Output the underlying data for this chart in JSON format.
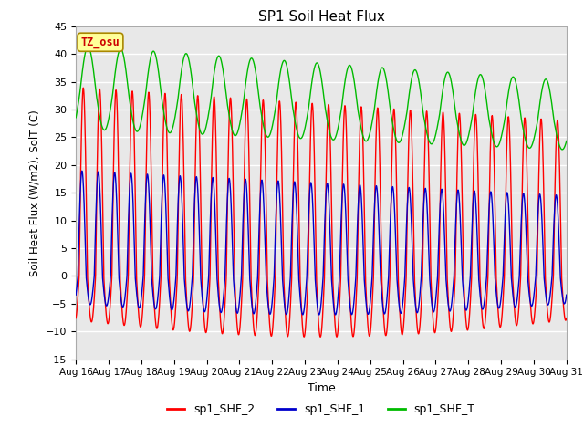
{
  "title": "SP1 Soil Heat Flux",
  "xlabel": "Time",
  "ylabel": "Soil Heat Flux (W/m2), SolT (C)",
  "yticks": [
    -15,
    -10,
    -5,
    0,
    5,
    10,
    15,
    20,
    25,
    30,
    35,
    40,
    45
  ],
  "ylim": [
    -15,
    45
  ],
  "xtick_labels": [
    "Aug 16",
    "Aug 17",
    "Aug 18",
    "Aug 19",
    "Aug 20",
    "Aug 21",
    "Aug 22",
    "Aug 23",
    "Aug 24",
    "Aug 25",
    "Aug 26",
    "Aug 27",
    "Aug 28",
    "Aug 29",
    "Aug 30",
    "Aug 31"
  ],
  "color_shf2": "#ff0000",
  "color_shf1": "#0000cc",
  "color_shft": "#00bb00",
  "legend_labels": [
    "sp1_SHF_2",
    "sp1_SHF_1",
    "sp1_SHF_T"
  ],
  "annotation_text": "TZ_osu",
  "annotation_color": "#cc0000",
  "annotation_bg": "#ffff99",
  "background_color": "#e8e8e8",
  "grid_color": "#ffffff",
  "fig_bg": "#ffffff",
  "n_days": 15,
  "points": 3000
}
